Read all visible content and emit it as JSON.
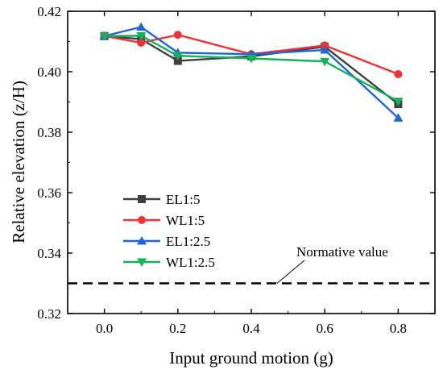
{
  "chart_data": {
    "type": "line",
    "xlabel": "Input ground motion (g)",
    "ylabel": "Relative elevation (z/H)",
    "xlim": [
      -0.1,
      0.9
    ],
    "ylim": [
      0.32,
      0.42
    ],
    "xticks": [
      "0.0",
      "0.2",
      "0.4",
      "0.6",
      "0.8"
    ],
    "xtick_values": [
      0.0,
      0.2,
      0.4,
      0.6,
      0.8
    ],
    "yticks": [
      "0.32",
      "0.34",
      "0.36",
      "0.38",
      "0.40",
      "0.42"
    ],
    "ytick_values": [
      0.32,
      0.34,
      0.36,
      0.38,
      0.4,
      0.42
    ],
    "grid": false,
    "legend_position": "lower-left",
    "x": [
      0.0,
      0.1,
      0.2,
      0.4,
      0.6,
      0.8
    ],
    "series": [
      {
        "name": "EL1:5",
        "color": "#404040",
        "marker": "square",
        "values": [
          0.4118,
          0.4108,
          0.4036,
          0.4051,
          0.4083,
          0.3893
        ]
      },
      {
        "name": "WL1:5",
        "color": "#ee3333",
        "marker": "circle",
        "values": [
          0.4118,
          0.4096,
          0.4122,
          0.4058,
          0.4087,
          0.3992
        ]
      },
      {
        "name": "EL1:2.5",
        "color": "#1f66d6",
        "marker": "triangle-up",
        "values": [
          0.4118,
          0.4148,
          0.4063,
          0.4058,
          0.4072,
          0.3847
        ]
      },
      {
        "name": "WL1:2.5",
        "color": "#15b15a",
        "marker": "triangle-down",
        "values": [
          0.4118,
          0.4119,
          0.4053,
          0.4044,
          0.4034,
          0.3902
        ]
      }
    ],
    "reference_line": {
      "label": "Normative value",
      "y": 0.33,
      "style": "dashed",
      "color": "#000000"
    }
  }
}
